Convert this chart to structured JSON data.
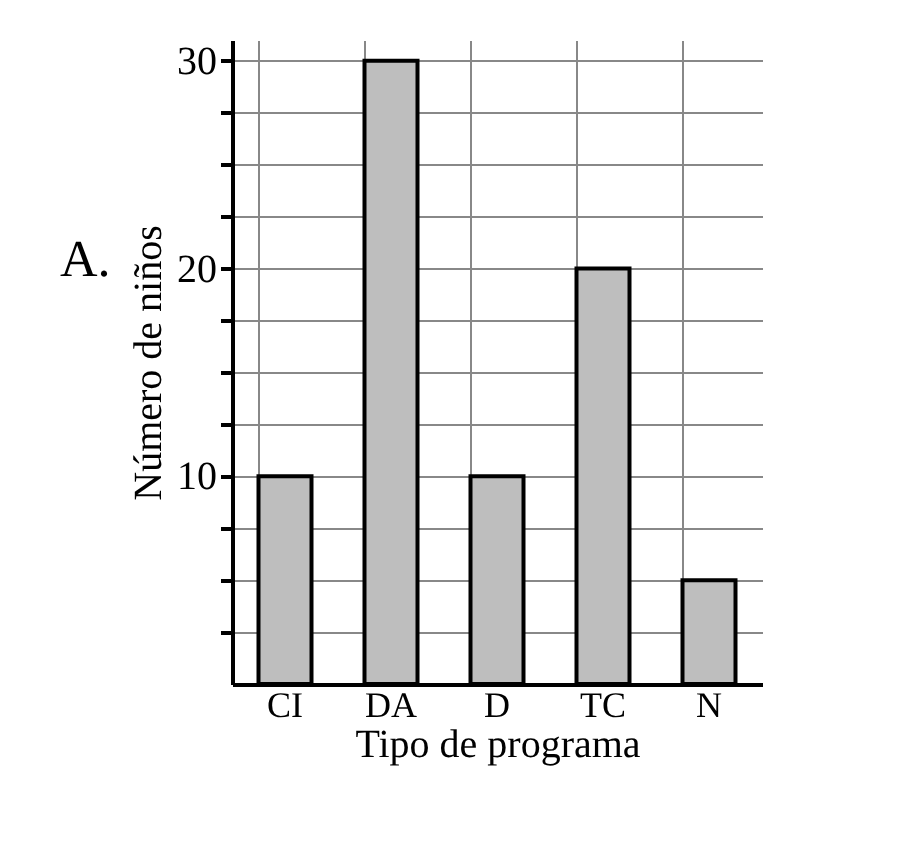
{
  "chart_data": {
    "type": "bar",
    "xlabel": "Tipo de programa",
    "ylabel": "Número de niños",
    "annotations": [
      "A."
    ],
    "categories": [
      "CI",
      "DA",
      "D",
      "TC",
      "N"
    ],
    "values": [
      10,
      30,
      10,
      20,
      5
    ],
    "color": "#bebebe",
    "ylim": [
      0,
      31
    ],
    "yticks": [
      {
        "value": 2.5,
        "label": null
      },
      {
        "value": 5,
        "label": null
      },
      {
        "value": 7.5,
        "label": null
      },
      10,
      {
        "value": 12.5,
        "label": null
      },
      {
        "value": 15,
        "label": null
      },
      {
        "value": 17.5,
        "label": null
      },
      20,
      {
        "value": 22.5,
        "label": null
      },
      {
        "value": 25,
        "label": null
      },
      {
        "value": 27.5,
        "label": null
      },
      30
    ],
    "grid": true
  }
}
